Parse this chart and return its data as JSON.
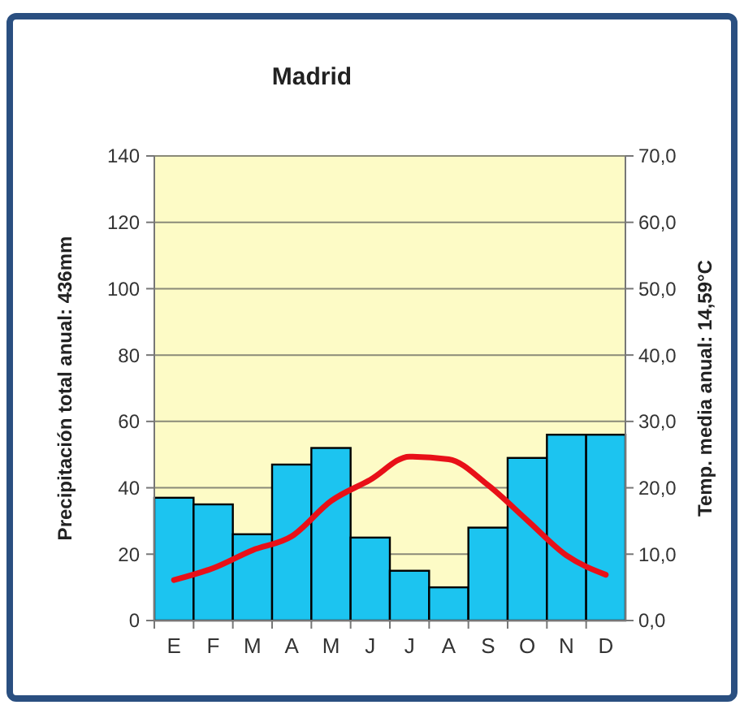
{
  "chart_data": {
    "type": "bar",
    "title": "Madrid",
    "categories": [
      "E",
      "F",
      "M",
      "A",
      "M",
      "J",
      "J",
      "A",
      "S",
      "O",
      "N",
      "D"
    ],
    "series": [
      {
        "color": "#1cc4f0",
        "values": [
          37,
          35,
          26,
          47,
          52,
          25,
          15,
          10,
          28,
          49,
          56,
          56
        ]
      },
      {
        "type": "line",
        "axis": "y2",
        "color": "#e81018",
        "values": [
          6.1,
          7.9,
          10.6,
          12.7,
          18.0,
          21.2,
          24.7,
          24.3,
          20.4,
          15.1,
          9.8,
          6.9
        ]
      }
    ],
    "ylabel": "Precipitación total anual: 436mm",
    "y2label": "Temp. media anual: 14,59°C",
    "ylim": [
      0,
      140
    ],
    "yticks": [
      0,
      20,
      40,
      60,
      80,
      100,
      120,
      140
    ],
    "y2lim": [
      0,
      70
    ],
    "y2ticks": [
      {
        "value": 0,
        "label": "0,0"
      },
      {
        "value": 10,
        "label": "10,0"
      },
      {
        "value": 20,
        "label": "20,0"
      },
      {
        "value": 30,
        "label": "30,0"
      },
      {
        "value": 40,
        "label": "40,0"
      },
      {
        "value": 50,
        "label": "50,0"
      },
      {
        "value": 60,
        "label": "60,0"
      },
      {
        "value": 70,
        "label": "70,0"
      }
    ],
    "grid": "y",
    "marker": "none",
    "line_style": "solid"
  }
}
